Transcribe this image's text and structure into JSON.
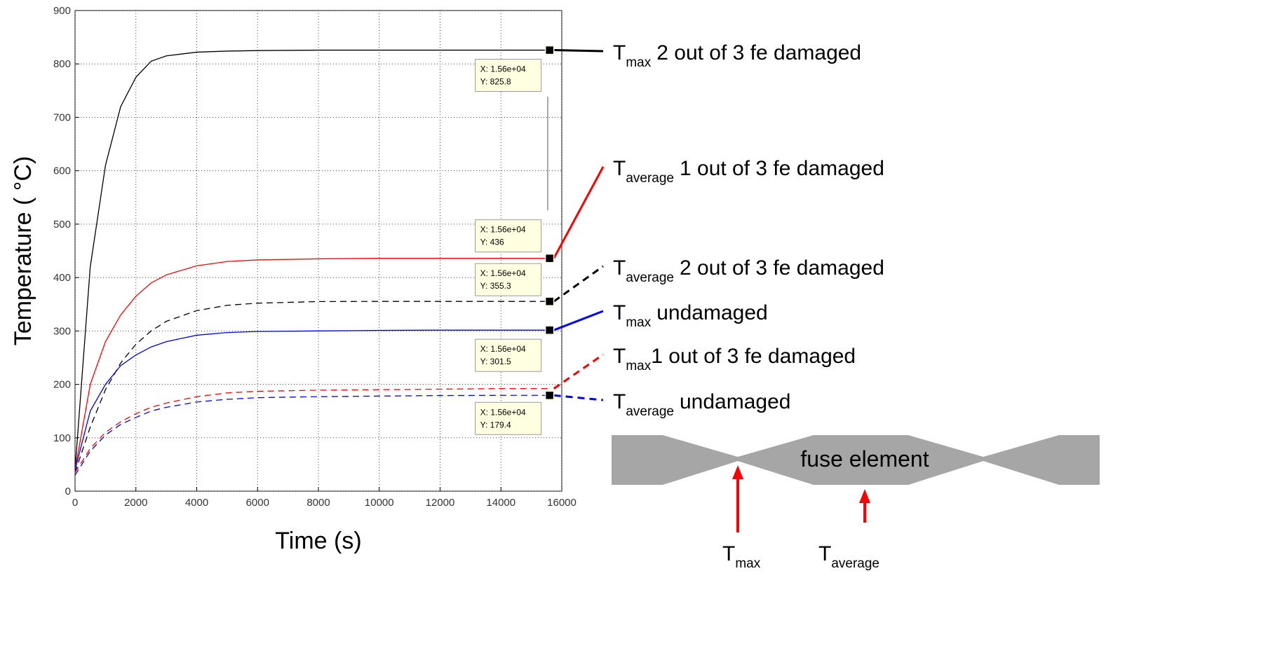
{
  "chart_data": {
    "type": "line",
    "x_label": "Time (s)",
    "y_label": "Temperature ( °C)",
    "x": [
      0,
      500,
      1000,
      1500,
      2000,
      2500,
      3000,
      4000,
      5000,
      6000,
      8000,
      10000,
      12000,
      14000,
      15600
    ],
    "series": [
      {
        "name": {
          "symbol": "T",
          "subscript": "max",
          "text": "2 out of 3 fe damaged"
        },
        "color": "#000000",
        "linestyle": "solid",
        "values": [
          40,
          420,
          610,
          720,
          775,
          805,
          815,
          822,
          824,
          825,
          825.8,
          825.8,
          825.8,
          825.8,
          825.8
        ],
        "datatip": [
          "X: 1.56e+04",
          "Y: 825.8"
        ]
      },
      {
        "name": {
          "symbol": "T",
          "subscript": "average",
          "text": "1 out of 3 fe damaged"
        },
        "color": "#ff0000",
        "linestyle": "solid",
        "values": [
          40,
          200,
          280,
          330,
          365,
          390,
          405,
          422,
          430,
          433,
          435,
          436,
          436,
          436,
          436
        ],
        "datatip": [
          "X: 1.56e+04",
          "Y: 436"
        ]
      },
      {
        "name": {
          "symbol": "T",
          "subscript": "average",
          "text": "2 out of 3 fe damaged"
        },
        "color": "#000000",
        "linestyle": "dashed",
        "values": [
          35,
          120,
          190,
          240,
          275,
          300,
          318,
          338,
          348,
          352,
          355,
          355.3,
          355.3,
          355.3,
          355.3
        ],
        "datatip": [
          "X: 1.56e+04",
          "Y: 355.3"
        ]
      },
      {
        "name": {
          "symbol": "T",
          "subscript": "max",
          "text": "undamaged"
        },
        "color": "#0000ff",
        "linestyle": "solid",
        "values": [
          40,
          150,
          200,
          235,
          255,
          270,
          280,
          292,
          297,
          299,
          300,
          301,
          301.5,
          301.5,
          301.5
        ],
        "datatip": [
          "X: 1.56e+04",
          "Y: 301.5"
        ]
      },
      {
        "name": {
          "symbol": "T",
          "subscript": "max",
          "text": "1 out of 3 fe damaged"
        },
        "color": "#ff0000",
        "linestyle": "dashed",
        "values": [
          35,
          80,
          110,
          130,
          145,
          157,
          165,
          177,
          184,
          187,
          189,
          190,
          191,
          192,
          192
        ]
      },
      {
        "name": {
          "symbol": "T",
          "subscript": "average",
          "text": "undamaged"
        },
        "color": "#0000ff",
        "linestyle": "dashed",
        "values": [
          30,
          75,
          105,
          125,
          138,
          150,
          157,
          167,
          172,
          175,
          177,
          178,
          179,
          179.4,
          179.4
        ],
        "datatip": [
          "X: 1.56e+04",
          "Y: 179.4"
        ]
      }
    ],
    "xlim": [
      0,
      16000
    ],
    "xticks": [
      0,
      2000,
      4000,
      6000,
      8000,
      10000,
      12000,
      14000,
      16000
    ],
    "ylim": [
      0,
      900
    ],
    "yticks": [
      0,
      100,
      200,
      300,
      400,
      500,
      600,
      700,
      800,
      900
    ],
    "grid": true
  },
  "diagram": {
    "label": "fuse element",
    "arrows": [
      {
        "symbol": "T",
        "subscript": "max"
      },
      {
        "symbol": "T",
        "subscript": "average"
      }
    ]
  }
}
